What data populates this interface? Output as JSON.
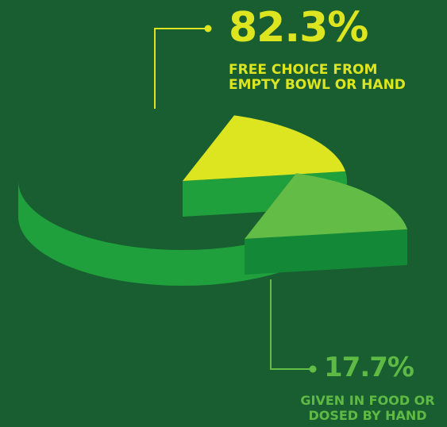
{
  "chart_data": {
    "type": "pie",
    "style": "3d-exploded",
    "series": [
      {
        "value": 82.3,
        "value_label": "82.3%",
        "label_lines": [
          "FREE CHOICE FROM",
          "EMPTY BOWL OR HAND"
        ],
        "top_color": "#dde520",
        "side_color": "#1fa03c",
        "exploded": false
      },
      {
        "value": 17.7,
        "value_label": "17.7%",
        "label_lines": [
          "GIVEN IN FOOD OR",
          "DOSED BY HAND"
        ],
        "top_color": "#63bc46",
        "side_color": "#138836",
        "exploded": true
      }
    ]
  },
  "colors": {
    "background": "#185e30",
    "cut_face": "#0d3d1c",
    "large_label": "#dde520",
    "small_label": "#5fba45"
  }
}
